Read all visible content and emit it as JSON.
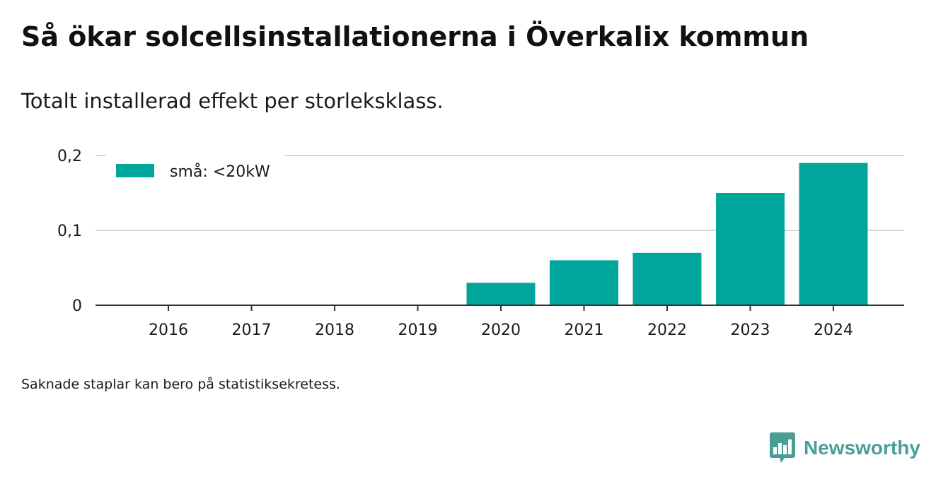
{
  "title": "Så ökar solcellsinstallationerna i Överkalix kommun",
  "subtitle": "Totalt installerad effekt per storleksklass.",
  "footnote": "Saknade staplar kan bero på statistiksekretess.",
  "brand": {
    "name": "Newsworthy",
    "icon": "newsworthy-logo-icon",
    "color": "#4a9e96"
  },
  "chart_data": {
    "type": "bar",
    "title": "",
    "xlabel": "",
    "ylabel": "",
    "categories": [
      "2016",
      "2017",
      "2018",
      "2019",
      "2020",
      "2021",
      "2022",
      "2023",
      "2024"
    ],
    "series": [
      {
        "name": "små: <20kW",
        "color": "#00a59b",
        "values": [
          0,
          0,
          0,
          0,
          0.03,
          0.06,
          0.07,
          0.15,
          0.19
        ]
      }
    ],
    "ylim": [
      0,
      0.2
    ],
    "yticks": [
      0,
      0.1,
      0.2
    ],
    "ytick_labels": [
      "0",
      "0,1",
      "0,2"
    ],
    "grid": true,
    "legend_position": "top-left"
  }
}
